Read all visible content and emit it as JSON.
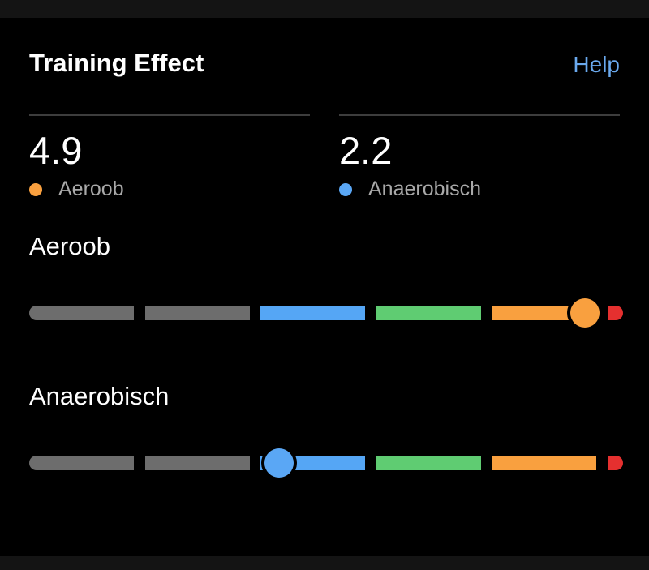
{
  "header": {
    "title": "Training Effect",
    "help_label": "Help"
  },
  "summary": {
    "aerobic": {
      "value": "4.9",
      "label": "Aeroob",
      "dot_color": "#f9a03f"
    },
    "anaerobic": {
      "value": "2.2",
      "label": "Anaerobisch",
      "dot_color": "#5aa7f5"
    }
  },
  "scale": {
    "min": 0,
    "max": 5,
    "zones": [
      {
        "color": "#6d6d6d"
      },
      {
        "color": "#6d6d6d"
      },
      {
        "color": "#55a6f5"
      },
      {
        "color": "#5fcc72"
      },
      {
        "color": "#f9a03f"
      },
      {
        "color": "#e5302f"
      }
    ]
  },
  "sections": {
    "aerobic": {
      "title": "Aeroob",
      "value": 4.9,
      "knob_color": "#f9a03f"
    },
    "anaerobic": {
      "title": "Anaerobisch",
      "value": 2.2,
      "knob_color": "#5aa7f5"
    }
  }
}
